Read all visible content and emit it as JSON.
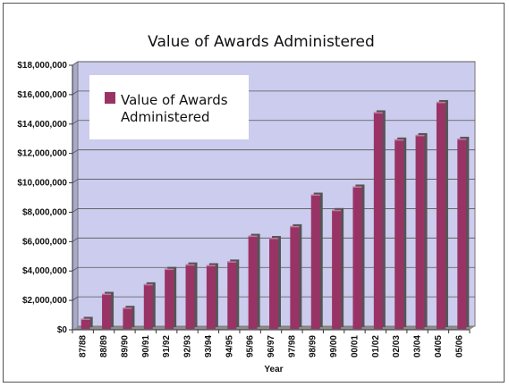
{
  "chart_data": {
    "type": "bar",
    "title": "Value of Awards Administered",
    "xlabel": "Year",
    "ylabel": "",
    "ylim": [
      0,
      18000000
    ],
    "yticks": [
      0,
      2000000,
      4000000,
      6000000,
      8000000,
      10000000,
      12000000,
      14000000,
      16000000,
      18000000
    ],
    "ytick_labels": [
      "$0",
      "$2,000,000",
      "$4,000,000",
      "$6,000,000",
      "$8,000,000",
      "$10,000,000",
      "$12,000,000",
      "$14,000,000",
      "$16,000,000",
      "$18,000,000"
    ],
    "categories": [
      "87/88",
      "88/89",
      "89/90",
      "90/91",
      "91/92",
      "92/93",
      "93/94",
      "94/95",
      "95/96",
      "96/97",
      "97/98",
      "98/99",
      "99/00",
      "00/01",
      "01/02",
      "02/03",
      "03/04",
      "04/05",
      "05/06"
    ],
    "series": [
      {
        "name": "Value of Awards Administered",
        "color": "#993366",
        "values": [
          700000,
          2400000,
          1450000,
          3050000,
          4100000,
          4400000,
          4350000,
          4600000,
          6350000,
          6200000,
          7000000,
          9150000,
          8100000,
          9700000,
          14750000,
          12900000,
          13200000,
          15450000,
          12950000
        ]
      }
    ],
    "legend": {
      "position": "top-left",
      "label_line1": "Value of Awards",
      "label_line2": "Administered"
    },
    "grid": true,
    "plot_background": "#ccccee",
    "grid_color": "#555555"
  }
}
